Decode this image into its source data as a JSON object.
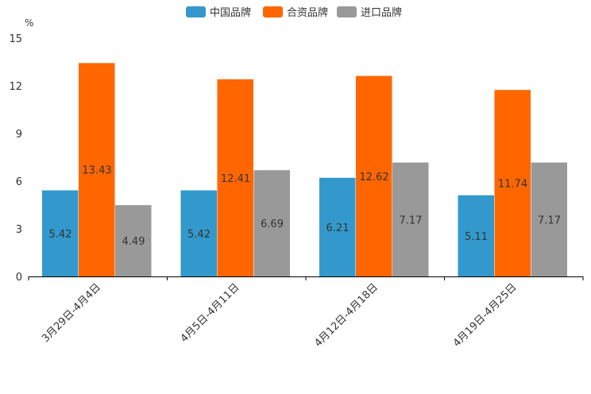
{
  "chart_data": {
    "type": "bar",
    "title": "",
    "xlabel": "",
    "ylabel": "%",
    "ylim": [
      0,
      15
    ],
    "yticks": [
      0,
      3,
      6,
      9,
      12,
      15
    ],
    "categories": [
      "3月29日-4月4日",
      "4月5日-4月11日",
      "4月12日-4月18日",
      "4月19日-4月25日"
    ],
    "series": [
      {
        "name": "中国品牌",
        "color": "#3399cc",
        "values": [
          5.42,
          5.42,
          6.21,
          5.11
        ]
      },
      {
        "name": "合资品牌",
        "color": "#ff6600",
        "values": [
          13.43,
          12.41,
          12.62,
          11.74
        ]
      },
      {
        "name": "进口品牌",
        "color": "#999999",
        "values": [
          4.49,
          6.69,
          7.17,
          7.17
        ]
      }
    ],
    "legend_position": "top-center",
    "grid": false
  }
}
